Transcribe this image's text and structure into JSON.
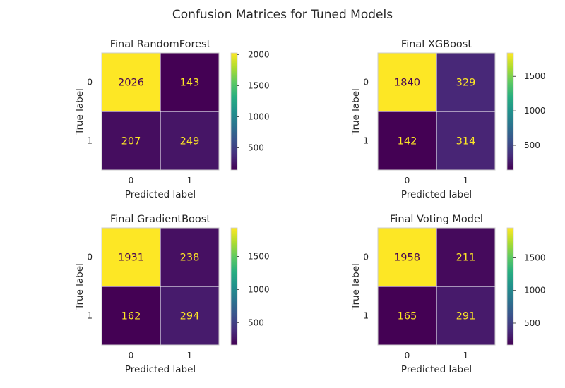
{
  "suptitle": "Confusion Matrices for Tuned Models",
  "chart_data": [
    {
      "type": "heatmap",
      "title": "Final RandomForest",
      "xlabel": "Predicted label",
      "ylabel": "True label",
      "x_ticks": [
        "0",
        "1"
      ],
      "y_ticks": [
        "0",
        "1"
      ],
      "matrix": [
        [
          2026,
          143
        ],
        [
          207,
          249
        ]
      ],
      "colormap": "viridis",
      "colorbar_ticks": [
        "500",
        "1000",
        "1500",
        "2000"
      ],
      "colorbar_tick_values": [
        500,
        1000,
        1500,
        2000
      ],
      "grid": true
    },
    {
      "type": "heatmap",
      "title": "Final XGBoost",
      "xlabel": "Predicted label",
      "ylabel": "True label",
      "x_ticks": [
        "0",
        "1"
      ],
      "y_ticks": [
        "0",
        "1"
      ],
      "matrix": [
        [
          1840,
          329
        ],
        [
          142,
          314
        ]
      ],
      "colormap": "viridis",
      "colorbar_ticks": [
        "500",
        "1000",
        "1500"
      ],
      "colorbar_tick_values": [
        500,
        1000,
        1500
      ],
      "grid": true
    },
    {
      "type": "heatmap",
      "title": "Final GradientBoost",
      "xlabel": "Predicted label",
      "ylabel": "True label",
      "x_ticks": [
        "0",
        "1"
      ],
      "y_ticks": [
        "0",
        "1"
      ],
      "matrix": [
        [
          1931,
          238
        ],
        [
          162,
          294
        ]
      ],
      "colormap": "viridis",
      "colorbar_ticks": [
        "500",
        "1000",
        "1500"
      ],
      "colorbar_tick_values": [
        500,
        1000,
        1500
      ],
      "grid": true
    },
    {
      "type": "heatmap",
      "title": "Final Voting Model",
      "xlabel": "Predicted label",
      "ylabel": "True label",
      "x_ticks": [
        "0",
        "1"
      ],
      "y_ticks": [
        "0",
        "1"
      ],
      "matrix": [
        [
          1958,
          211
        ],
        [
          165,
          291
        ]
      ],
      "colormap": "viridis",
      "colorbar_ticks": [
        "500",
        "1000",
        "1500"
      ],
      "colorbar_tick_values": [
        500,
        1000,
        1500
      ],
      "grid": true
    }
  ]
}
